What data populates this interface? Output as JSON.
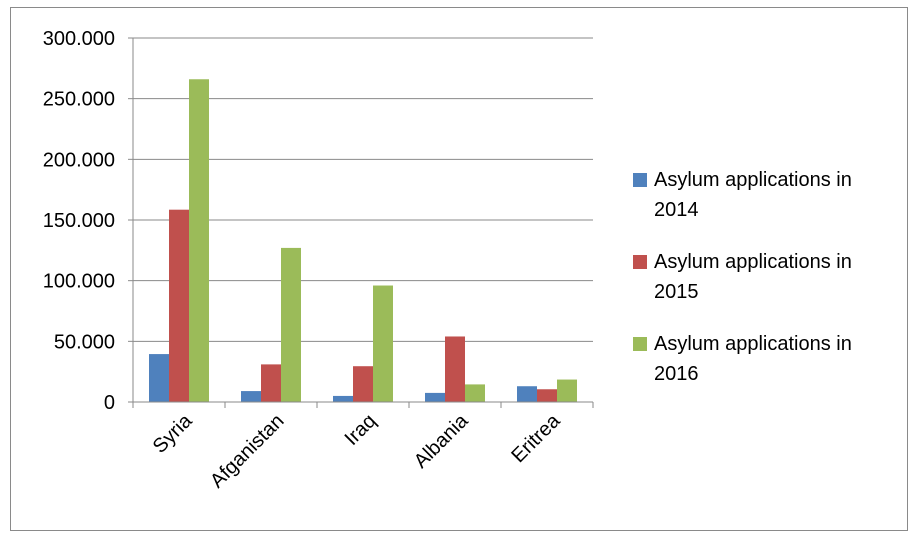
{
  "chart_data": {
    "type": "bar",
    "categories": [
      "Syria",
      "Afganistan",
      "Iraq",
      "Albania",
      "Eritrea"
    ],
    "series": [
      {
        "name": "Asylum applications in 2014",
        "color": "#4F81BD",
        "values": [
          39500,
          9000,
          5000,
          7500,
          13000
        ]
      },
      {
        "name": "Asylum applications in 2015",
        "color": "#C0504D",
        "values": [
          158500,
          31000,
          29500,
          54000,
          10500
        ]
      },
      {
        "name": "Asylum applications in 2016",
        "color": "#9BBB59",
        "values": [
          266000,
          127000,
          96000,
          14500,
          18500
        ]
      }
    ],
    "ylim": [
      0,
      300000
    ],
    "yticks": [
      0,
      50000,
      100000,
      150000,
      200000,
      250000,
      300000
    ],
    "ytick_labels": [
      "0",
      "50.000",
      "100.000",
      "150.000",
      "200.000",
      "250.000",
      "300.000"
    ],
    "grid": true,
    "legend_position": "right",
    "title": "",
    "xlabel": "",
    "ylabel": ""
  }
}
